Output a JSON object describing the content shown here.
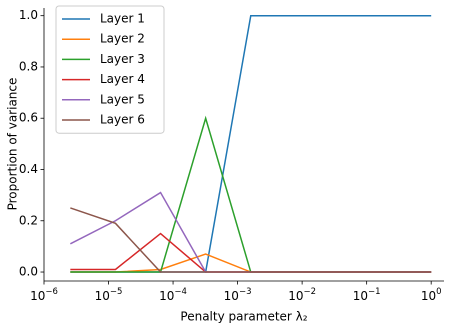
{
  "chart_data": {
    "type": "line",
    "xlabel": "Penalty parameter λ₂",
    "ylabel": "Proportion of variance",
    "x": [
      2.56e-06,
      1.28e-05,
      6.4e-05,
      0.00032,
      0.0016,
      0.008,
      0.04,
      0.2,
      1
    ],
    "series": [
      {
        "name": "Layer 1",
        "color": "#1f77b4",
        "values": [
          0,
          0,
          0,
          0,
          1,
          1,
          1,
          1,
          1
        ]
      },
      {
        "name": "Layer 2",
        "color": "#ff7f0e",
        "values": [
          0,
          0,
          0.01,
          0.07,
          0,
          0,
          0,
          0,
          0
        ]
      },
      {
        "name": "Layer 3",
        "color": "#2ca02c",
        "values": [
          0,
          0,
          0,
          0.6,
          0,
          0,
          0,
          0,
          0
        ]
      },
      {
        "name": "Layer 4",
        "color": "#d62728",
        "values": [
          0.01,
          0.01,
          0.15,
          0,
          0,
          0,
          0,
          0,
          0
        ]
      },
      {
        "name": "Layer 5",
        "color": "#9467bd",
        "values": [
          0.11,
          0.2,
          0.31,
          0,
          0,
          0,
          0,
          0,
          0
        ]
      },
      {
        "name": "Layer 6",
        "color": "#8c564b",
        "values": [
          0.25,
          0.19,
          0,
          0,
          0,
          0,
          0,
          0,
          0
        ]
      }
    ],
    "xscale": "log",
    "xlim": [
      1e-06,
      1.58
    ],
    "xticks": [
      {
        "value": 1e-06,
        "label": "10",
        "exponent": "−6"
      },
      {
        "value": 1e-05,
        "label": "10",
        "exponent": "−5"
      },
      {
        "value": 0.0001,
        "label": "10",
        "exponent": "−4"
      },
      {
        "value": 0.001,
        "label": "10",
        "exponent": "−3"
      },
      {
        "value": 0.01,
        "label": "10",
        "exponent": "−2"
      },
      {
        "value": 0.1,
        "label": "10",
        "exponent": "−1"
      },
      {
        "value": 1,
        "label": "10",
        "exponent": "0"
      }
    ],
    "ylim": [
      -0.035,
      1.03
    ],
    "yticks": [
      {
        "value": 0,
        "label": "0.0"
      },
      {
        "value": 0.2,
        "label": "0.2"
      },
      {
        "value": 0.4,
        "label": "0.4"
      },
      {
        "value": 0.6,
        "label": "0.6"
      },
      {
        "value": 0.8,
        "label": "0.8"
      },
      {
        "value": 1,
        "label": "1.0"
      }
    ],
    "legend": "upper-left"
  }
}
